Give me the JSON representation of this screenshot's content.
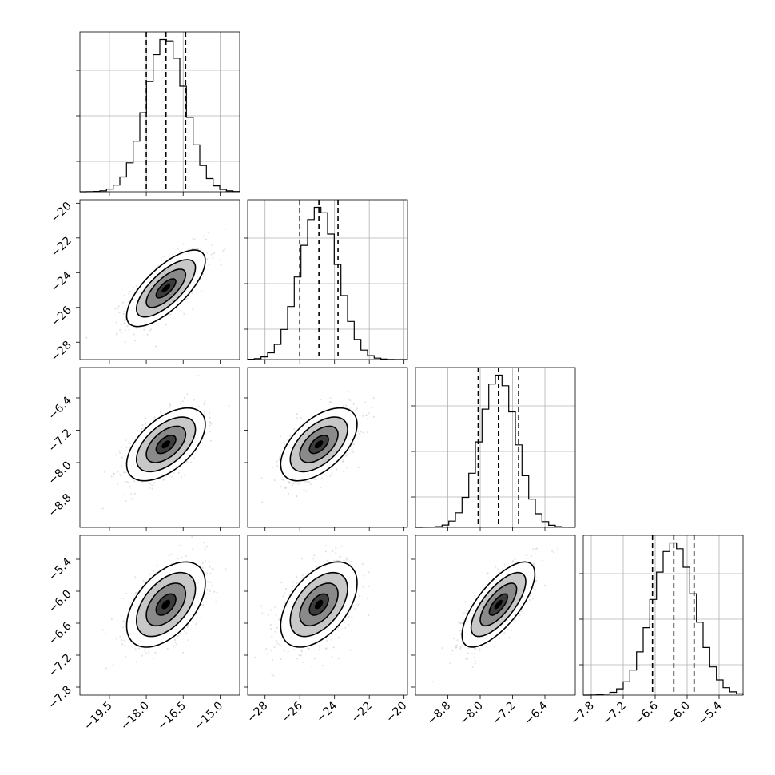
{
  "chart_data": {
    "type": "corner",
    "description_colors": {
      "histogram": "#000000",
      "grid": "#b0b0b0",
      "samples": "#9a9a9a",
      "density_dark": "#000000",
      "density_light": "#ffffff"
    },
    "grid": true,
    "parameters": [
      {
        "index": 0,
        "center": -17.2,
        "sigma": 0.8,
        "range": [
          -20.7,
          -14.2
        ],
        "ticks": [
          -19.5,
          -18.0,
          -16.5,
          -15.0
        ],
        "tick_labels": [
          "−19.5",
          "−18.0",
          "−16.5",
          "−15.0"
        ],
        "quantiles": [
          -18.0,
          -17.2,
          -16.4
        ]
      },
      {
        "index": 1,
        "center": -24.9,
        "sigma": 1.1,
        "range": [
          -29.0,
          -19.8
        ],
        "ticks": [
          -28,
          -26,
          -24,
          -22,
          -20
        ],
        "tick_labels": [
          "−28",
          "−26",
          "−24",
          "−22",
          "−20"
        ],
        "quantiles": [
          -26.0,
          -24.9,
          -23.8
        ]
      },
      {
        "index": 2,
        "center": -7.55,
        "sigma": 0.45,
        "range": [
          -9.6,
          -5.65
        ],
        "ticks": [
          -8.8,
          -8.0,
          -7.2,
          -6.4
        ],
        "tick_labels": [
          "−8.8",
          "−8.0",
          "−7.2",
          "−6.4"
        ],
        "quantiles": [
          -8.05,
          -7.55,
          -7.05
        ]
      },
      {
        "index": 3,
        "center": -6.25,
        "sigma": 0.4,
        "range": [
          -7.95,
          -4.95
        ],
        "ticks": [
          -7.8,
          -7.2,
          -6.6,
          -6.0,
          -5.4
        ],
        "tick_labels": [
          "−7.8",
          "−7.2",
          "−6.6",
          "−6.0",
          "−5.4"
        ],
        "quantiles": [
          -6.65,
          -6.25,
          -5.87
        ]
      }
    ],
    "correlations": [
      [
        1,
        0.72,
        0.55,
        0.5
      ],
      [
        0.72,
        1,
        0.55,
        0.5
      ],
      [
        0.55,
        0.55,
        1,
        0.72
      ],
      [
        0.5,
        0.5,
        0.72,
        1
      ]
    ],
    "contour_levels_sigma": [
      0.5,
      1.0,
      1.5,
      2.0
    ]
  }
}
